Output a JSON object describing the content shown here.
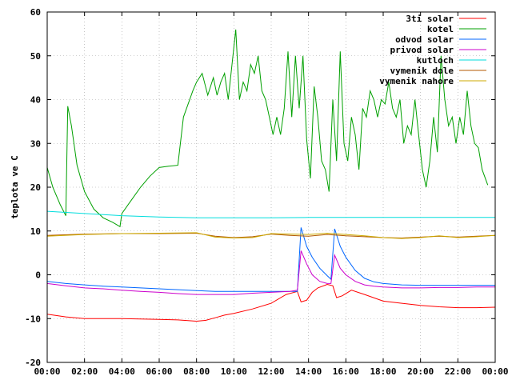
{
  "chart_data": {
    "type": "line",
    "title": "",
    "xlabel": "",
    "ylabel": "teplota ve C",
    "xlim": [
      0,
      24
    ],
    "ylim": [
      -20,
      60
    ],
    "x_ticks": [
      {
        "value": 0,
        "label": "00:00"
      },
      {
        "value": 2,
        "label": "02:00"
      },
      {
        "value": 4,
        "label": "04:00"
      },
      {
        "value": 6,
        "label": "06:00"
      },
      {
        "value": 8,
        "label": "08:00"
      },
      {
        "value": 10,
        "label": "10:00"
      },
      {
        "value": 12,
        "label": "12:00"
      },
      {
        "value": 14,
        "label": "14:00"
      },
      {
        "value": 16,
        "label": "16:00"
      },
      {
        "value": 18,
        "label": "18:00"
      },
      {
        "value": 20,
        "label": "20:00"
      },
      {
        "value": 22,
        "label": "22:00"
      },
      {
        "value": 24,
        "label": "00:00"
      }
    ],
    "y_ticks": [
      {
        "value": -20,
        "label": "-20"
      },
      {
        "value": -10,
        "label": "-10"
      },
      {
        "value": 0,
        "label": "0"
      },
      {
        "value": 10,
        "label": "10"
      },
      {
        "value": 20,
        "label": "20"
      },
      {
        "value": 30,
        "label": "30"
      },
      {
        "value": 40,
        "label": "40"
      },
      {
        "value": 50,
        "label": "50"
      },
      {
        "value": 60,
        "label": "60"
      }
    ],
    "grid": true,
    "legend_position": "top-right",
    "series": [
      {
        "name": "3ti solar",
        "color": "#ff0000",
        "points": [
          [
            0,
            -9
          ],
          [
            1,
            -9.6
          ],
          [
            2,
            -10
          ],
          [
            3,
            -10
          ],
          [
            4,
            -10
          ],
          [
            5,
            -10.1
          ],
          [
            6,
            -10.2
          ],
          [
            7,
            -10.3
          ],
          [
            8,
            -10.6
          ],
          [
            8.5,
            -10.4
          ],
          [
            9,
            -9.8
          ],
          [
            9.5,
            -9.2
          ],
          [
            10,
            -8.8
          ],
          [
            11,
            -7.8
          ],
          [
            12,
            -6.5
          ],
          [
            12.8,
            -4.5
          ],
          [
            13.4,
            -3.8
          ],
          [
            13.6,
            -6.2
          ],
          [
            13.9,
            -5.8
          ],
          [
            14.2,
            -4
          ],
          [
            14.5,
            -3
          ],
          [
            15,
            -2.2
          ],
          [
            15.3,
            -2.5
          ],
          [
            15.5,
            -5.2
          ],
          [
            15.8,
            -4.8
          ],
          [
            16.3,
            -3.5
          ],
          [
            17,
            -4.5
          ],
          [
            18,
            -6
          ],
          [
            19,
            -6.5
          ],
          [
            20,
            -7
          ],
          [
            21,
            -7.3
          ],
          [
            22,
            -7.5
          ],
          [
            23,
            -7.5
          ],
          [
            24,
            -7.4
          ]
        ]
      },
      {
        "name": "kotel",
        "color": "#00a000",
        "points": [
          [
            0,
            24.5
          ],
          [
            0.3,
            20
          ],
          [
            0.7,
            16
          ],
          [
            1,
            13.5
          ],
          [
            1.1,
            38.5
          ],
          [
            1.3,
            34
          ],
          [
            1.6,
            25
          ],
          [
            2,
            19
          ],
          [
            2.5,
            15
          ],
          [
            3,
            13
          ],
          [
            3.5,
            12
          ],
          [
            3.9,
            11
          ],
          [
            4,
            14
          ],
          [
            4.5,
            17
          ],
          [
            5,
            20
          ],
          [
            5.5,
            22.5
          ],
          [
            6,
            24.5
          ],
          [
            6.5,
            24.8
          ],
          [
            7,
            25
          ],
          [
            7.3,
            36
          ],
          [
            7.8,
            42
          ],
          [
            8,
            44
          ],
          [
            8.3,
            46
          ],
          [
            8.6,
            41
          ],
          [
            8.9,
            45
          ],
          [
            9.1,
            41
          ],
          [
            9.3,
            44
          ],
          [
            9.5,
            46
          ],
          [
            9.7,
            40
          ],
          [
            9.9,
            48
          ],
          [
            10.1,
            56
          ],
          [
            10.3,
            40
          ],
          [
            10.5,
            44
          ],
          [
            10.7,
            42
          ],
          [
            10.9,
            48
          ],
          [
            11.1,
            46
          ],
          [
            11.3,
            50
          ],
          [
            11.5,
            42
          ],
          [
            11.7,
            40
          ],
          [
            11.9,
            36
          ],
          [
            12.1,
            32
          ],
          [
            12.3,
            36
          ],
          [
            12.5,
            32
          ],
          [
            12.7,
            38
          ],
          [
            12.9,
            51
          ],
          [
            13.1,
            36
          ],
          [
            13.3,
            50
          ],
          [
            13.5,
            38
          ],
          [
            13.7,
            50
          ],
          [
            13.9,
            31
          ],
          [
            14.1,
            22
          ],
          [
            14.3,
            43
          ],
          [
            14.5,
            36
          ],
          [
            14.7,
            26
          ],
          [
            14.9,
            24
          ],
          [
            15.1,
            19
          ],
          [
            15.3,
            40
          ],
          [
            15.5,
            26
          ],
          [
            15.7,
            51
          ],
          [
            15.9,
            30
          ],
          [
            16.1,
            26
          ],
          [
            16.3,
            36
          ],
          [
            16.5,
            32
          ],
          [
            16.7,
            24
          ],
          [
            16.9,
            38
          ],
          [
            17.1,
            36
          ],
          [
            17.3,
            42
          ],
          [
            17.5,
            40
          ],
          [
            17.7,
            36
          ],
          [
            17.9,
            40
          ],
          [
            18.1,
            39
          ],
          [
            18.3,
            44
          ],
          [
            18.5,
            38
          ],
          [
            18.7,
            36
          ],
          [
            18.9,
            40
          ],
          [
            19.1,
            30
          ],
          [
            19.3,
            34
          ],
          [
            19.5,
            32
          ],
          [
            19.7,
            40
          ],
          [
            19.9,
            32
          ],
          [
            20.1,
            24
          ],
          [
            20.3,
            20
          ],
          [
            20.5,
            26
          ],
          [
            20.7,
            36
          ],
          [
            20.9,
            28
          ],
          [
            21.1,
            50
          ],
          [
            21.3,
            40
          ],
          [
            21.5,
            34
          ],
          [
            21.7,
            36
          ],
          [
            21.9,
            30
          ],
          [
            22.1,
            36
          ],
          [
            22.3,
            32
          ],
          [
            22.5,
            42
          ],
          [
            22.7,
            34
          ],
          [
            22.9,
            30
          ],
          [
            23.1,
            29
          ],
          [
            23.3,
            24
          ],
          [
            23.6,
            20.5
          ]
        ]
      },
      {
        "name": "odvod solar",
        "color": "#0066ff",
        "points": [
          [
            0,
            -1.5
          ],
          [
            1,
            -2
          ],
          [
            2,
            -2.3
          ],
          [
            3,
            -2.6
          ],
          [
            4,
            -2.8
          ],
          [
            5,
            -3
          ],
          [
            6,
            -3.2
          ],
          [
            7,
            -3.4
          ],
          [
            8,
            -3.6
          ],
          [
            9,
            -3.8
          ],
          [
            10,
            -3.8
          ],
          [
            11,
            -3.8
          ],
          [
            12,
            -3.8
          ],
          [
            13,
            -3.8
          ],
          [
            13.4,
            -3.8
          ],
          [
            13.6,
            10.8
          ],
          [
            13.9,
            6.5
          ],
          [
            14.2,
            4
          ],
          [
            14.6,
            1.5
          ],
          [
            15,
            -0.2
          ],
          [
            15.2,
            -1
          ],
          [
            15.4,
            10.5
          ],
          [
            15.7,
            6.5
          ],
          [
            16,
            4
          ],
          [
            16.5,
            1
          ],
          [
            17,
            -0.8
          ],
          [
            17.5,
            -1.6
          ],
          [
            18,
            -2
          ],
          [
            19,
            -2.3
          ],
          [
            20,
            -2.4
          ],
          [
            21,
            -2.4
          ],
          [
            22,
            -2.4
          ],
          [
            23,
            -2.4
          ],
          [
            24,
            -2.4
          ]
        ]
      },
      {
        "name": "privod solar",
        "color": "#cc00cc",
        "points": [
          [
            0,
            -2
          ],
          [
            1,
            -2.5
          ],
          [
            2,
            -3
          ],
          [
            3,
            -3.2
          ],
          [
            4,
            -3.5
          ],
          [
            5,
            -3.8
          ],
          [
            6,
            -4
          ],
          [
            7,
            -4.3
          ],
          [
            8,
            -4.5
          ],
          [
            9,
            -4.5
          ],
          [
            10,
            -4.5
          ],
          [
            11,
            -4.2
          ],
          [
            12,
            -4
          ],
          [
            13,
            -3.8
          ],
          [
            13.4,
            -3.5
          ],
          [
            13.6,
            5.5
          ],
          [
            13.9,
            2.5
          ],
          [
            14.2,
            0
          ],
          [
            14.6,
            -1.5
          ],
          [
            15,
            -2
          ],
          [
            15.2,
            -2
          ],
          [
            15.4,
            4.5
          ],
          [
            15.7,
            1.5
          ],
          [
            16,
            0
          ],
          [
            16.5,
            -1.5
          ],
          [
            17,
            -2.3
          ],
          [
            17.5,
            -2.6
          ],
          [
            18,
            -2.8
          ],
          [
            19,
            -3
          ],
          [
            20,
            -3
          ],
          [
            21,
            -2.9
          ],
          [
            22,
            -2.9
          ],
          [
            23,
            -2.8
          ],
          [
            24,
            -2.8
          ]
        ]
      },
      {
        "name": "kutloch",
        "color": "#00dddd",
        "points": [
          [
            0,
            14.5
          ],
          [
            2,
            14
          ],
          [
            4,
            13.5
          ],
          [
            6,
            13.2
          ],
          [
            8,
            13
          ],
          [
            10,
            13
          ],
          [
            12,
            13
          ],
          [
            14,
            13.1
          ],
          [
            16,
            13.1
          ],
          [
            18,
            13.1
          ],
          [
            20,
            13.1
          ],
          [
            22,
            13.1
          ],
          [
            24,
            13.1
          ]
        ]
      },
      {
        "name": "vymenik dole",
        "color": "#b35900",
        "points": [
          [
            0,
            9
          ],
          [
            2,
            9.3
          ],
          [
            4,
            9.4
          ],
          [
            6,
            9.4
          ],
          [
            8,
            9.5
          ],
          [
            9,
            8.8
          ],
          [
            10,
            8.5
          ],
          [
            11,
            8.7
          ],
          [
            12,
            9.3
          ],
          [
            13,
            9
          ],
          [
            14,
            8.8
          ],
          [
            15,
            9.2
          ],
          [
            16,
            8.9
          ],
          [
            17,
            8.7
          ],
          [
            18,
            8.5
          ],
          [
            19,
            8.4
          ],
          [
            20,
            8.6
          ],
          [
            21,
            8.8
          ],
          [
            22,
            8.6
          ],
          [
            23,
            8.8
          ],
          [
            24,
            9
          ]
        ]
      },
      {
        "name": "vymenik nahore",
        "color": "#ccaa00",
        "points": [
          [
            0,
            8.8
          ],
          [
            2,
            9.2
          ],
          [
            4,
            9.4
          ],
          [
            6,
            9.5
          ],
          [
            8,
            9.6
          ],
          [
            9,
            8.6
          ],
          [
            10,
            8.4
          ],
          [
            11,
            8.5
          ],
          [
            12,
            9.4
          ],
          [
            13,
            9.3
          ],
          [
            14,
            9.2
          ],
          [
            15,
            9.5
          ],
          [
            16,
            9.2
          ],
          [
            17,
            8.9
          ],
          [
            18,
            8.5
          ],
          [
            19,
            8.3
          ],
          [
            20,
            8.5
          ],
          [
            21,
            8.9
          ],
          [
            22,
            8.5
          ],
          [
            23,
            8.7
          ],
          [
            24,
            9
          ]
        ]
      }
    ]
  }
}
